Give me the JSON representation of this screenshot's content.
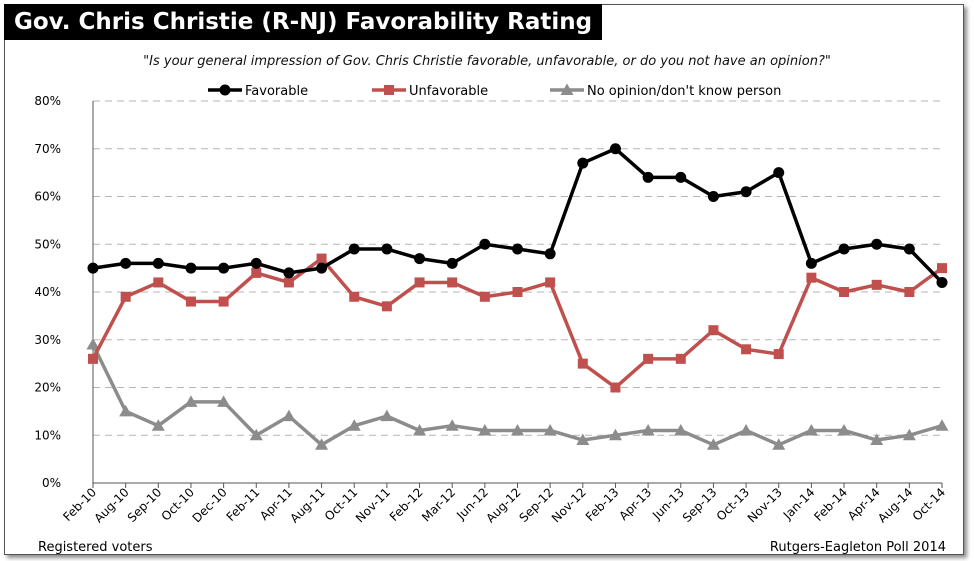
{
  "chart_data": {
    "type": "line",
    "title": "Gov. Chris Christie (R-NJ) Favorability Rating",
    "subtitle": "\"Is your general impression of Gov. Chris Christie favorable, unfavorable, or do you not have an opinion?\"",
    "footnote_left": "Registered voters",
    "footnote_right": "Rutgers-Eagleton Poll 2014",
    "categories": [
      "Feb-10",
      "Aug-10",
      "Sep-10",
      "Oct-10",
      "Dec-10",
      "Feb-11",
      "Apr-11",
      "Aug-11",
      "Oct-11",
      "Nov-11",
      "Feb-12",
      "Mar-12",
      "Jun-12",
      "Aug-12",
      "Sep-12",
      "Nov-12",
      "Feb-13",
      "Apr-13",
      "Jun-13",
      "Sep-13",
      "Oct-13",
      "Nov-13",
      "Jan-14",
      "Feb-14",
      "Apr-14",
      "Aug-14",
      "Oct-14"
    ],
    "series": [
      {
        "name": "Favorable",
        "color": "#000000",
        "marker": "circle",
        "values": [
          45,
          46,
          46,
          45,
          45,
          46,
          44,
          45,
          49,
          49,
          47,
          46,
          50,
          49,
          48,
          67,
          70,
          64,
          64,
          60,
          61,
          65,
          46,
          49,
          50,
          49,
          42
        ]
      },
      {
        "name": "Unfavorable",
        "color": "#c0504d",
        "marker": "square",
        "values": [
          26,
          39,
          42,
          38,
          38,
          44,
          42,
          47,
          39,
          37,
          42,
          42,
          39,
          40,
          42,
          25,
          20,
          26,
          26,
          32,
          28,
          27,
          43,
          40,
          41.5,
          40,
          45
        ]
      },
      {
        "name": "No opinion/don't know person",
        "color": "#8c8c8c",
        "marker": "triangle",
        "values": [
          29,
          15,
          12,
          17,
          17,
          10,
          14,
          8,
          12,
          14,
          11,
          12,
          11,
          11,
          11,
          9,
          10,
          11,
          11,
          8,
          11,
          8,
          11,
          11,
          9,
          10,
          12
        ]
      }
    ],
    "ylim": [
      0,
      80
    ],
    "yticks": [
      "0%",
      "10%",
      "20%",
      "30%",
      "40%",
      "50%",
      "60%",
      "70%",
      "80%"
    ],
    "grid": true,
    "legend_position": "top"
  }
}
